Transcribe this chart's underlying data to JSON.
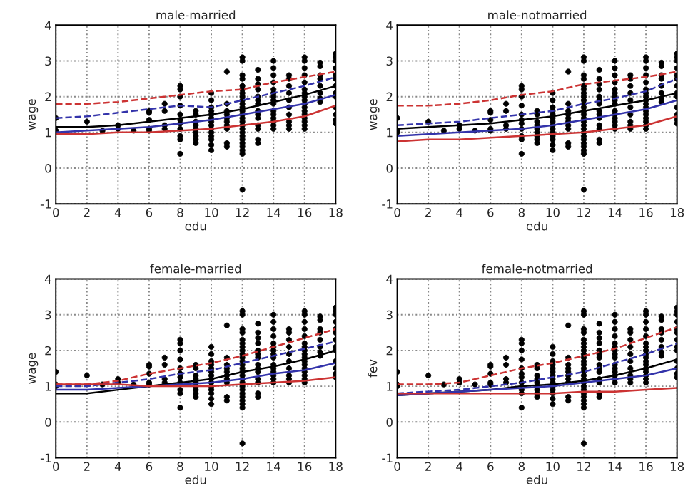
{
  "chart_data": [
    {
      "type": "line",
      "title": "male-married",
      "xlabel": "edu",
      "ylabel": "wage",
      "xlim": [
        0,
        18
      ],
      "xticks": [
        0,
        2,
        4,
        6,
        8,
        10,
        12,
        14,
        16,
        18
      ],
      "ylim": [
        -1,
        4
      ],
      "yticks": [
        -1,
        0,
        1,
        2,
        3,
        4
      ],
      "grid": true,
      "series": [
        {
          "type": "scatter",
          "color": "#000000",
          "marker": "circle",
          "x": [
            0,
            0,
            0,
            2,
            3,
            4,
            4,
            5,
            6,
            6,
            6,
            6,
            6,
            7,
            7,
            7,
            7,
            8,
            8,
            8,
            8,
            8,
            8,
            8,
            8,
            8,
            8,
            8,
            9,
            9,
            9,
            9,
            9,
            9,
            9,
            9,
            9,
            10,
            10,
            10,
            10,
            10,
            10,
            10,
            10,
            10,
            10,
            10,
            10,
            10,
            10,
            11,
            11,
            11,
            11,
            11,
            11,
            11,
            11,
            11,
            11,
            12,
            12,
            12,
            12,
            12,
            12,
            12,
            12,
            12,
            12,
            12,
            12,
            12,
            12,
            12,
            12,
            12,
            12,
            12,
            12,
            12,
            12,
            12,
            12,
            12,
            13,
            13,
            13,
            13,
            13,
            13,
            13,
            13,
            13,
            13,
            13,
            13,
            13,
            13,
            14,
            14,
            14,
            14,
            14,
            14,
            14,
            14,
            14,
            14,
            14,
            14,
            14,
            14,
            14,
            15,
            15,
            15,
            15,
            15,
            15,
            15,
            15,
            15,
            15,
            16,
            16,
            16,
            16,
            16,
            16,
            16,
            16,
            16,
            16,
            16,
            16,
            16,
            16,
            16,
            16,
            16,
            17,
            17,
            17,
            17,
            17,
            17,
            17,
            17,
            18,
            18,
            18,
            18,
            18,
            18,
            18,
            18,
            18,
            18,
            18,
            18,
            18
          ],
          "values": [
            1.4,
            1.05,
            1.0,
            1.3,
            1.05,
            1.2,
            1.1,
            1.05,
            1.6,
            1.55,
            1.35,
            1.1,
            1.05,
            1.8,
            1.6,
            1.2,
            1.1,
            2.3,
            2.2,
            2.0,
            1.75,
            1.5,
            1.35,
            1.25,
            1.1,
            0.9,
            0.8,
            0.4,
            1.6,
            1.5,
            1.3,
            1.2,
            1.1,
            1.0,
            0.9,
            0.8,
            0.7,
            2.1,
            1.9,
            1.7,
            1.6,
            1.5,
            1.4,
            1.3,
            1.2,
            1.1,
            1.0,
            0.9,
            0.8,
            0.65,
            0.5,
            2.7,
            1.8,
            1.6,
            1.5,
            1.4,
            1.3,
            1.2,
            1.1,
            0.7,
            0.6,
            3.1,
            3.0,
            2.6,
            2.5,
            2.3,
            2.2,
            2.1,
            2.0,
            1.9,
            1.8,
            1.7,
            1.6,
            1.5,
            1.4,
            1.3,
            1.2,
            1.1,
            1.0,
            0.9,
            0.8,
            0.7,
            0.6,
            0.5,
            0.4,
            -0.6,
            2.75,
            2.5,
            2.35,
            2.2,
            2.0,
            1.9,
            1.8,
            1.6,
            1.5,
            1.4,
            1.2,
            1.1,
            0.8,
            0.7,
            3.0,
            2.8,
            2.6,
            2.4,
            2.2,
            2.1,
            2.0,
            1.9,
            1.8,
            1.6,
            1.5,
            1.4,
            1.3,
            1.2,
            1.1,
            2.6,
            2.5,
            2.3,
            2.1,
            1.9,
            1.7,
            1.5,
            1.3,
            1.2,
            1.1,
            3.1,
            3.0,
            2.8,
            2.6,
            2.4,
            2.2,
            2.1,
            2.0,
            1.9,
            1.8,
            1.7,
            1.6,
            1.5,
            1.4,
            1.3,
            1.2,
            1.1,
            2.95,
            2.85,
            2.6,
            2.5,
            2.3,
            2.1,
            1.95,
            1.85,
            3.2,
            3.1,
            3.0,
            2.8,
            2.6,
            2.5,
            2.3,
            2.1,
            2.0,
            1.7,
            1.5,
            1.35,
            1.25
          ]
        },
        {
          "color": "#cc3333",
          "line_style": "dashed",
          "x": [
            0,
            2,
            4,
            6,
            8,
            10,
            12,
            14,
            16,
            18
          ],
          "values": [
            1.8,
            1.8,
            1.85,
            1.95,
            2.05,
            2.15,
            2.2,
            2.4,
            2.55,
            2.7
          ]
        },
        {
          "color": "#3333aa",
          "line_style": "dashed",
          "x": [
            0,
            2,
            4,
            6,
            8,
            10,
            12,
            14,
            16,
            18
          ],
          "values": [
            1.4,
            1.45,
            1.55,
            1.65,
            1.75,
            1.7,
            1.9,
            2.1,
            2.3,
            2.55
          ]
        },
        {
          "color": "#000000",
          "line_style": "solid",
          "x": [
            0,
            2,
            4,
            6,
            8,
            10,
            12,
            14,
            16,
            18
          ],
          "values": [
            1.15,
            1.15,
            1.2,
            1.3,
            1.4,
            1.5,
            1.65,
            1.85,
            2.05,
            2.3
          ]
        },
        {
          "color": "#3333aa",
          "line_style": "solid",
          "x": [
            0,
            2,
            4,
            6,
            8,
            10,
            12,
            14,
            16,
            18
          ],
          "values": [
            1.0,
            1.05,
            1.1,
            1.15,
            1.25,
            1.35,
            1.5,
            1.65,
            1.8,
            2.05
          ]
        },
        {
          "color": "#cc3333",
          "line_style": "solid",
          "x": [
            0,
            2,
            4,
            6,
            8,
            10,
            12,
            14,
            16,
            18
          ],
          "values": [
            0.95,
            0.95,
            1.0,
            1.0,
            1.05,
            1.1,
            1.2,
            1.3,
            1.45,
            1.75
          ]
        }
      ]
    },
    {
      "type": "line",
      "title": "male-notmarried",
      "xlabel": "edu",
      "ylabel": "wage",
      "xlim": [
        0,
        18
      ],
      "xticks": [
        0,
        2,
        4,
        6,
        8,
        10,
        12,
        14,
        16,
        18
      ],
      "ylim": [
        -1,
        4
      ],
      "yticks": [
        -1,
        0,
        1,
        2,
        3,
        4
      ],
      "grid": true,
      "series": [
        {
          "type": "scatter",
          "color": "#000000",
          "marker": "circle",
          "x": [
            0,
            0,
            0,
            2,
            3,
            4,
            4,
            5,
            6,
            6,
            6,
            6,
            6,
            7,
            7,
            7,
            7,
            8,
            8,
            8,
            8,
            8,
            8,
            8,
            8,
            8,
            8,
            8,
            9,
            9,
            9,
            9,
            9,
            9,
            9,
            9,
            9,
            10,
            10,
            10,
            10,
            10,
            10,
            10,
            10,
            10,
            10,
            10,
            10,
            10,
            10,
            11,
            11,
            11,
            11,
            11,
            11,
            11,
            11,
            11,
            11,
            12,
            12,
            12,
            12,
            12,
            12,
            12,
            12,
            12,
            12,
            12,
            12,
            12,
            12,
            12,
            12,
            12,
            12,
            12,
            12,
            12,
            12,
            12,
            12,
            12,
            13,
            13,
            13,
            13,
            13,
            13,
            13,
            13,
            13,
            13,
            13,
            13,
            13,
            13,
            14,
            14,
            14,
            14,
            14,
            14,
            14,
            14,
            14,
            14,
            14,
            14,
            14,
            14,
            14,
            15,
            15,
            15,
            15,
            15,
            15,
            15,
            15,
            15,
            15,
            16,
            16,
            16,
            16,
            16,
            16,
            16,
            16,
            16,
            16,
            16,
            16,
            16,
            16,
            16,
            16,
            16,
            17,
            17,
            17,
            17,
            17,
            17,
            17,
            17,
            18,
            18,
            18,
            18,
            18,
            18,
            18,
            18,
            18,
            18,
            18,
            18,
            18
          ],
          "values": [
            1.4,
            1.05,
            1.0,
            1.3,
            1.05,
            1.2,
            1.1,
            1.05,
            1.6,
            1.55,
            1.35,
            1.1,
            1.05,
            1.8,
            1.6,
            1.2,
            1.1,
            2.3,
            2.2,
            2.0,
            1.75,
            1.5,
            1.35,
            1.25,
            1.1,
            0.9,
            0.8,
            0.4,
            1.6,
            1.5,
            1.3,
            1.2,
            1.1,
            1.0,
            0.9,
            0.8,
            0.7,
            2.1,
            1.9,
            1.7,
            1.6,
            1.5,
            1.4,
            1.3,
            1.2,
            1.1,
            1.0,
            0.9,
            0.8,
            0.65,
            0.5,
            2.7,
            1.8,
            1.6,
            1.5,
            1.4,
            1.3,
            1.2,
            1.1,
            0.7,
            0.6,
            3.1,
            3.0,
            2.6,
            2.5,
            2.3,
            2.2,
            2.1,
            2.0,
            1.9,
            1.8,
            1.7,
            1.6,
            1.5,
            1.4,
            1.3,
            1.2,
            1.1,
            1.0,
            0.9,
            0.8,
            0.7,
            0.6,
            0.5,
            0.4,
            -0.6,
            2.75,
            2.5,
            2.35,
            2.2,
            2.0,
            1.9,
            1.8,
            1.6,
            1.5,
            1.4,
            1.2,
            1.1,
            0.8,
            0.7,
            3.0,
            2.8,
            2.6,
            2.4,
            2.2,
            2.1,
            2.0,
            1.9,
            1.8,
            1.6,
            1.5,
            1.4,
            1.3,
            1.2,
            1.1,
            2.6,
            2.5,
            2.3,
            2.1,
            1.9,
            1.7,
            1.5,
            1.3,
            1.2,
            1.1,
            3.1,
            3.0,
            2.8,
            2.6,
            2.4,
            2.2,
            2.1,
            2.0,
            1.9,
            1.8,
            1.7,
            1.6,
            1.5,
            1.4,
            1.3,
            1.2,
            1.1,
            2.95,
            2.85,
            2.6,
            2.5,
            2.3,
            2.1,
            1.95,
            1.85,
            3.2,
            3.1,
            3.0,
            2.8,
            2.6,
            2.5,
            2.3,
            2.1,
            2.0,
            1.7,
            1.5,
            1.35,
            1.25
          ]
        },
        {
          "color": "#cc3333",
          "line_style": "dashed",
          "x": [
            0,
            2,
            4,
            6,
            8,
            10,
            12,
            14,
            16,
            18
          ],
          "values": [
            1.75,
            1.75,
            1.8,
            1.9,
            2.05,
            2.15,
            2.35,
            2.45,
            2.55,
            2.7
          ]
        },
        {
          "color": "#3333aa",
          "line_style": "dashed",
          "x": [
            0,
            2,
            4,
            6,
            8,
            10,
            12,
            14,
            16,
            18
          ],
          "values": [
            1.2,
            1.25,
            1.3,
            1.4,
            1.5,
            1.6,
            1.8,
            1.95,
            2.15,
            2.5
          ]
        },
        {
          "color": "#000000",
          "line_style": "solid",
          "x": [
            0,
            2,
            4,
            6,
            8,
            10,
            12,
            14,
            16,
            18
          ],
          "values": [
            1.1,
            1.15,
            1.2,
            1.25,
            1.35,
            1.45,
            1.6,
            1.75,
            1.9,
            2.1
          ]
        },
        {
          "color": "#3333aa",
          "line_style": "solid",
          "x": [
            0,
            2,
            4,
            6,
            8,
            10,
            12,
            14,
            16,
            18
          ],
          "values": [
            0.9,
            0.95,
            1.0,
            1.05,
            1.1,
            1.2,
            1.35,
            1.5,
            1.65,
            1.9
          ]
        },
        {
          "color": "#cc3333",
          "line_style": "solid",
          "x": [
            0,
            2,
            4,
            6,
            8,
            10,
            12,
            14,
            16,
            18
          ],
          "values": [
            0.75,
            0.8,
            0.8,
            0.85,
            0.9,
            0.95,
            1.0,
            1.1,
            1.2,
            1.45
          ]
        }
      ]
    },
    {
      "type": "line",
      "title": "female-married",
      "xlabel": "edu",
      "ylabel": "wage",
      "xlim": [
        0,
        18
      ],
      "xticks": [
        0,
        2,
        4,
        6,
        8,
        10,
        12,
        14,
        16,
        18
      ],
      "ylim": [
        -1,
        4
      ],
      "yticks": [
        -1,
        0,
        1,
        2,
        3,
        4
      ],
      "grid": true,
      "series": [
        {
          "type": "scatter",
          "color": "#000000",
          "marker": "circle",
          "x": [
            0,
            0,
            0,
            2,
            3,
            4,
            4,
            5,
            6,
            6,
            6,
            6,
            6,
            7,
            7,
            7,
            7,
            8,
            8,
            8,
            8,
            8,
            8,
            8,
            8,
            8,
            8,
            8,
            9,
            9,
            9,
            9,
            9,
            9,
            9,
            9,
            9,
            10,
            10,
            10,
            10,
            10,
            10,
            10,
            10,
            10,
            10,
            10,
            10,
            10,
            10,
            11,
            11,
            11,
            11,
            11,
            11,
            11,
            11,
            11,
            11,
            12,
            12,
            12,
            12,
            12,
            12,
            12,
            12,
            12,
            12,
            12,
            12,
            12,
            12,
            12,
            12,
            12,
            12,
            12,
            12,
            12,
            12,
            12,
            12,
            12,
            13,
            13,
            13,
            13,
            13,
            13,
            13,
            13,
            13,
            13,
            13,
            13,
            13,
            13,
            14,
            14,
            14,
            14,
            14,
            14,
            14,
            14,
            14,
            14,
            14,
            14,
            14,
            14,
            14,
            15,
            15,
            15,
            15,
            15,
            15,
            15,
            15,
            15,
            15,
            16,
            16,
            16,
            16,
            16,
            16,
            16,
            16,
            16,
            16,
            16,
            16,
            16,
            16,
            16,
            16,
            16,
            17,
            17,
            17,
            17,
            17,
            17,
            17,
            17,
            18,
            18,
            18,
            18,
            18,
            18,
            18,
            18,
            18,
            18,
            18,
            18,
            18
          ],
          "values": [
            1.4,
            1.05,
            1.0,
            1.3,
            1.05,
            1.2,
            1.1,
            1.05,
            1.6,
            1.55,
            1.35,
            1.1,
            1.05,
            1.8,
            1.6,
            1.2,
            1.1,
            2.3,
            2.2,
            2.0,
            1.75,
            1.5,
            1.35,
            1.25,
            1.1,
            0.9,
            0.8,
            0.4,
            1.6,
            1.5,
            1.3,
            1.2,
            1.1,
            1.0,
            0.9,
            0.8,
            0.7,
            2.1,
            1.9,
            1.7,
            1.6,
            1.5,
            1.4,
            1.3,
            1.2,
            1.1,
            1.0,
            0.9,
            0.8,
            0.65,
            0.5,
            2.7,
            1.8,
            1.6,
            1.5,
            1.4,
            1.3,
            1.2,
            1.1,
            0.7,
            0.6,
            3.1,
            3.0,
            2.6,
            2.5,
            2.3,
            2.2,
            2.1,
            2.0,
            1.9,
            1.8,
            1.7,
            1.6,
            1.5,
            1.4,
            1.3,
            1.2,
            1.1,
            1.0,
            0.9,
            0.8,
            0.7,
            0.6,
            0.5,
            0.4,
            -0.6,
            2.75,
            2.5,
            2.35,
            2.2,
            2.0,
            1.9,
            1.8,
            1.6,
            1.5,
            1.4,
            1.2,
            1.1,
            0.8,
            0.7,
            3.0,
            2.8,
            2.6,
            2.4,
            2.2,
            2.1,
            2.0,
            1.9,
            1.8,
            1.6,
            1.5,
            1.4,
            1.3,
            1.2,
            1.1,
            2.6,
            2.5,
            2.3,
            2.1,
            1.9,
            1.7,
            1.5,
            1.3,
            1.2,
            1.1,
            3.1,
            3.0,
            2.8,
            2.6,
            2.4,
            2.2,
            2.1,
            2.0,
            1.9,
            1.8,
            1.7,
            1.6,
            1.5,
            1.4,
            1.3,
            1.2,
            1.1,
            2.95,
            2.85,
            2.6,
            2.5,
            2.3,
            2.1,
            1.95,
            1.85,
            3.2,
            3.1,
            3.0,
            2.8,
            2.6,
            2.5,
            2.3,
            2.1,
            2.0,
            1.7,
            1.5,
            1.35,
            1.25
          ]
        },
        {
          "color": "#cc3333",
          "line_style": "dashed",
          "x": [
            0,
            2,
            4,
            6,
            8,
            10,
            12,
            14,
            16,
            18
          ],
          "values": [
            1.05,
            1.05,
            1.15,
            1.35,
            1.5,
            1.65,
            1.85,
            2.1,
            2.35,
            2.6
          ]
        },
        {
          "color": "#3333aa",
          "line_style": "dashed",
          "x": [
            0,
            2,
            4,
            6,
            8,
            10,
            12,
            14,
            16,
            18
          ],
          "values": [
            1.0,
            1.0,
            1.1,
            1.2,
            1.35,
            1.45,
            1.65,
            1.85,
            2.05,
            2.25
          ]
        },
        {
          "color": "#000000",
          "line_style": "solid",
          "x": [
            0,
            2,
            4,
            6,
            8,
            10,
            12,
            14,
            16,
            18
          ],
          "values": [
            0.8,
            0.8,
            0.9,
            1.0,
            1.1,
            1.2,
            1.4,
            1.55,
            1.75,
            2.0
          ]
        },
        {
          "color": "#3333aa",
          "line_style": "solid",
          "x": [
            0,
            2,
            4,
            6,
            8,
            10,
            12,
            14,
            16,
            18
          ],
          "values": [
            0.9,
            0.9,
            0.95,
            1.0,
            1.05,
            1.1,
            1.2,
            1.35,
            1.45,
            1.65
          ]
        },
        {
          "color": "#cc3333",
          "line_style": "solid",
          "x": [
            0,
            2,
            4,
            6,
            8,
            10,
            12,
            14,
            16,
            18
          ],
          "values": [
            1.05,
            1.05,
            1.05,
            1.0,
            1.0,
            1.0,
            1.05,
            1.1,
            1.15,
            1.25
          ]
        }
      ]
    },
    {
      "type": "line",
      "title": "female-notmarried",
      "xlabel": "edu",
      "ylabel": "fev",
      "xlim": [
        0,
        18
      ],
      "xticks": [
        0,
        2,
        4,
        6,
        8,
        10,
        12,
        14,
        16,
        18
      ],
      "ylim": [
        -1,
        4
      ],
      "yticks": [
        -1,
        0,
        1,
        2,
        3,
        4
      ],
      "grid": true,
      "series": [
        {
          "type": "scatter",
          "color": "#000000",
          "marker": "circle",
          "x": [
            0,
            0,
            0,
            2,
            3,
            4,
            4,
            5,
            6,
            6,
            6,
            6,
            6,
            7,
            7,
            7,
            7,
            8,
            8,
            8,
            8,
            8,
            8,
            8,
            8,
            8,
            8,
            8,
            9,
            9,
            9,
            9,
            9,
            9,
            9,
            9,
            9,
            10,
            10,
            10,
            10,
            10,
            10,
            10,
            10,
            10,
            10,
            10,
            10,
            10,
            10,
            11,
            11,
            11,
            11,
            11,
            11,
            11,
            11,
            11,
            11,
            12,
            12,
            12,
            12,
            12,
            12,
            12,
            12,
            12,
            12,
            12,
            12,
            12,
            12,
            12,
            12,
            12,
            12,
            12,
            12,
            12,
            12,
            12,
            12,
            12,
            13,
            13,
            13,
            13,
            13,
            13,
            13,
            13,
            13,
            13,
            13,
            13,
            13,
            13,
            14,
            14,
            14,
            14,
            14,
            14,
            14,
            14,
            14,
            14,
            14,
            14,
            14,
            14,
            14,
            15,
            15,
            15,
            15,
            15,
            15,
            15,
            15,
            15,
            15,
            16,
            16,
            16,
            16,
            16,
            16,
            16,
            16,
            16,
            16,
            16,
            16,
            16,
            16,
            16,
            16,
            16,
            17,
            17,
            17,
            17,
            17,
            17,
            17,
            17,
            18,
            18,
            18,
            18,
            18,
            18,
            18,
            18,
            18,
            18,
            18,
            18,
            18
          ],
          "values": [
            1.4,
            1.05,
            1.0,
            1.3,
            1.05,
            1.2,
            1.1,
            1.05,
            1.6,
            1.55,
            1.35,
            1.1,
            1.05,
            1.8,
            1.6,
            1.2,
            1.1,
            2.3,
            2.2,
            2.0,
            1.75,
            1.5,
            1.35,
            1.25,
            1.1,
            0.9,
            0.8,
            0.4,
            1.6,
            1.5,
            1.3,
            1.2,
            1.1,
            1.0,
            0.9,
            0.8,
            0.7,
            2.1,
            1.9,
            1.7,
            1.6,
            1.5,
            1.4,
            1.3,
            1.2,
            1.1,
            1.0,
            0.9,
            0.8,
            0.65,
            0.5,
            2.7,
            1.8,
            1.6,
            1.5,
            1.4,
            1.3,
            1.2,
            1.1,
            0.7,
            0.6,
            3.1,
            3.0,
            2.6,
            2.5,
            2.3,
            2.2,
            2.1,
            2.0,
            1.9,
            1.8,
            1.7,
            1.6,
            1.5,
            1.4,
            1.3,
            1.2,
            1.1,
            1.0,
            0.9,
            0.8,
            0.7,
            0.6,
            0.5,
            0.4,
            -0.6,
            2.75,
            2.5,
            2.35,
            2.2,
            2.0,
            1.9,
            1.8,
            1.6,
            1.5,
            1.4,
            1.2,
            1.1,
            0.8,
            0.7,
            3.0,
            2.8,
            2.6,
            2.4,
            2.2,
            2.1,
            2.0,
            1.9,
            1.8,
            1.6,
            1.5,
            1.4,
            1.3,
            1.2,
            1.1,
            2.6,
            2.5,
            2.3,
            2.1,
            1.9,
            1.7,
            1.5,
            1.3,
            1.2,
            1.1,
            3.1,
            3.0,
            2.8,
            2.6,
            2.4,
            2.2,
            2.1,
            2.0,
            1.9,
            1.8,
            1.7,
            1.6,
            1.5,
            1.4,
            1.3,
            1.2,
            1.1,
            2.95,
            2.85,
            2.6,
            2.5,
            2.3,
            2.1,
            1.95,
            1.85,
            3.2,
            3.1,
            3.0,
            2.8,
            2.6,
            2.5,
            2.3,
            2.1,
            2.0,
            1.7,
            1.5,
            1.35,
            1.25
          ]
        },
        {
          "color": "#cc3333",
          "line_style": "dashed",
          "x": [
            0,
            2,
            4,
            6,
            8,
            10,
            12,
            14,
            16,
            18
          ],
          "values": [
            1.05,
            1.05,
            1.1,
            1.3,
            1.5,
            1.65,
            1.85,
            2.05,
            2.35,
            2.65
          ]
        },
        {
          "color": "#3333aa",
          "line_style": "dashed",
          "x": [
            0,
            2,
            4,
            6,
            8,
            10,
            12,
            14,
            16,
            18
          ],
          "values": [
            0.8,
            0.85,
            0.9,
            1.0,
            1.1,
            1.25,
            1.4,
            1.65,
            1.9,
            2.2
          ]
        },
        {
          "color": "#000000",
          "line_style": "solid",
          "x": [
            0,
            2,
            4,
            6,
            8,
            10,
            12,
            14,
            16,
            18
          ],
          "values": [
            0.75,
            0.8,
            0.85,
            0.9,
            1.0,
            1.05,
            1.15,
            1.3,
            1.5,
            1.75
          ]
        },
        {
          "color": "#3333aa",
          "line_style": "solid",
          "x": [
            0,
            2,
            4,
            6,
            8,
            10,
            12,
            14,
            16,
            18
          ],
          "values": [
            0.75,
            0.8,
            0.85,
            0.9,
            0.95,
            1.0,
            1.1,
            1.2,
            1.3,
            1.5
          ]
        },
        {
          "color": "#cc3333",
          "line_style": "solid",
          "x": [
            0,
            2,
            4,
            6,
            8,
            10,
            12,
            14,
            16,
            18
          ],
          "values": [
            0.8,
            0.8,
            0.8,
            0.8,
            0.8,
            0.8,
            0.85,
            0.85,
            0.9,
            0.95
          ]
        }
      ]
    }
  ]
}
